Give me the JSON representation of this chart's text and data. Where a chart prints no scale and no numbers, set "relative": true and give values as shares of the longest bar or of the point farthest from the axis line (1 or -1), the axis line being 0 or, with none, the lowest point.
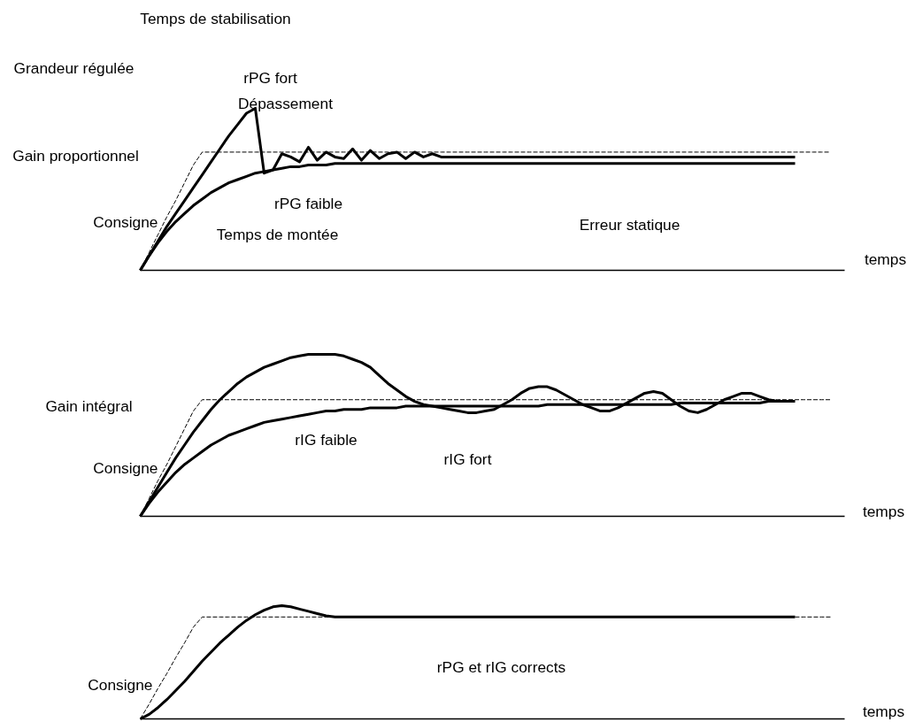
{
  "chart_data": [
    {
      "type": "line",
      "relative": true,
      "title": "Gain proportionnel",
      "ylabel": "Grandeur régulée",
      "xlabel": "temps",
      "categories": [
        null,
        null,
        null,
        null,
        null,
        null,
        null,
        null,
        null,
        null,
        null,
        null,
        null,
        null,
        null,
        null,
        null,
        null,
        null,
        null,
        null,
        null,
        null,
        null,
        null,
        null,
        null,
        null,
        null,
        null,
        null,
        null,
        null,
        null,
        null,
        null,
        null,
        null,
        null,
        null,
        null,
        null,
        null,
        null,
        null,
        null,
        null,
        null,
        null,
        null,
        null,
        null,
        null,
        null,
        null,
        null,
        null,
        null,
        null,
        null,
        null,
        null,
        null,
        null,
        null,
        null,
        null,
        null,
        null,
        null,
        null,
        null,
        null,
        null,
        null,
        null,
        null,
        null,
        null
      ],
      "series": [
        {
          "name": "rPG fort",
          "color": "#000000",
          "line_style": "solid",
          "values": [
            0,
            0.09,
            0.18,
            0.27,
            0.35,
            0.43,
            0.51,
            0.59,
            0.67,
            0.75,
            0.83,
            0.9,
            0.97,
            1,
            0.6,
            0.62,
            0.72,
            0.7,
            0.67,
            0.76,
            0.68,
            0.73,
            0.7,
            0.69,
            0.75,
            0.68,
            0.74,
            0.69,
            0.72,
            0.73,
            0.69,
            0.73,
            0.7,
            0.72,
            0.7,
            0.7,
            0.7,
            0.7,
            0.7,
            0.7,
            0.7,
            0.7,
            0.7,
            0.7,
            0.7,
            0.7,
            0.7,
            0.7,
            0.7,
            0.7,
            0.7,
            0.7,
            0.7,
            0.7,
            0.7,
            0.7,
            0.7,
            0.7,
            0.7,
            0.7,
            0.7,
            0.7,
            0.7,
            0.7,
            0.7,
            0.7,
            0.7,
            0.7,
            0.7,
            0.7,
            0.7,
            0.7,
            0.7,
            0.7,
            0.7,
            null,
            null,
            null,
            null
          ]
        },
        {
          "name": "rPG faible",
          "color": "#000000",
          "line_style": "solid",
          "values": [
            0,
            0.09,
            0.17,
            0.24,
            0.3,
            0.35,
            0.4,
            0.44,
            0.48,
            0.51,
            0.54,
            0.56,
            0.58,
            0.6,
            0.61,
            0.62,
            0.63,
            0.64,
            0.64,
            0.65,
            0.65,
            0.65,
            0.66,
            0.66,
            0.66,
            0.66,
            0.66,
            0.66,
            0.66,
            0.66,
            0.66,
            0.66,
            0.66,
            0.66,
            0.66,
            0.66,
            0.66,
            0.66,
            0.66,
            0.66,
            0.66,
            0.66,
            0.66,
            0.66,
            0.66,
            0.66,
            0.66,
            0.66,
            0.66,
            0.66,
            0.66,
            0.66,
            0.66,
            0.66,
            0.66,
            0.66,
            0.66,
            0.66,
            0.66,
            0.66,
            0.66,
            0.66,
            0.66,
            0.66,
            0.66,
            0.66,
            0.66,
            0.66,
            0.66,
            0.66,
            0.66,
            0.66,
            0.66,
            0.66,
            0.66,
            null,
            null,
            null,
            null
          ]
        },
        {
          "name": "Consigne",
          "color": "#000000",
          "line_style": "dashed",
          "values": [
            0,
            0.11,
            0.22,
            0.33,
            0.43,
            0.54,
            0.65,
            0.73,
            0.73,
            0.73,
            0.73,
            0.73,
            0.73,
            0.73,
            0.73,
            0.73,
            0.73,
            0.73,
            0.73,
            0.73,
            0.73,
            0.73,
            0.73,
            0.73,
            0.73,
            0.73,
            0.73,
            0.73,
            0.73,
            0.73,
            0.73,
            0.73,
            0.73,
            0.73,
            0.73,
            0.73,
            0.73,
            0.73,
            0.73,
            0.73,
            0.73,
            0.73,
            0.73,
            0.73,
            0.73,
            0.73,
            0.73,
            0.73,
            0.73,
            0.73,
            0.73,
            0.73,
            0.73,
            0.73,
            0.73,
            0.73,
            0.73,
            0.73,
            0.73,
            0.73,
            0.73,
            0.73,
            0.73,
            0.73,
            0.73,
            0.73,
            0.73,
            0.73,
            0.73,
            0.73,
            0.73,
            0.73,
            0.73,
            0.73,
            0.73,
            0.73,
            0.73,
            0.73,
            0.73
          ]
        }
      ],
      "annotations": [
        "Temps de stabilisation",
        "Dépassement",
        "Temps de montée",
        "Erreur statique"
      ]
    },
    {
      "type": "line",
      "relative": true,
      "title": "Gain intégral",
      "xlabel": "temps",
      "categories": [
        null,
        null,
        null,
        null,
        null,
        null,
        null,
        null,
        null,
        null,
        null,
        null,
        null,
        null,
        null,
        null,
        null,
        null,
        null,
        null,
        null,
        null,
        null,
        null,
        null,
        null,
        null,
        null,
        null,
        null,
        null,
        null,
        null,
        null,
        null,
        null,
        null,
        null,
        null,
        null,
        null,
        null,
        null,
        null,
        null,
        null,
        null,
        null,
        null,
        null,
        null,
        null,
        null,
        null,
        null,
        null,
        null,
        null,
        null,
        null,
        null,
        null,
        null,
        null,
        null,
        null,
        null,
        null,
        null,
        null,
        null,
        null,
        null,
        null,
        null,
        null,
        null,
        null,
        null
      ],
      "series": [
        {
          "name": "rIG fort",
          "color": "#000000",
          "line_style": "solid",
          "values": [
            0,
            0.09,
            0.18,
            0.27,
            0.36,
            0.44,
            0.52,
            0.59,
            0.66,
            0.72,
            0.77,
            0.82,
            0.86,
            0.89,
            0.92,
            0.94,
            0.96,
            0.98,
            0.99,
            1,
            1,
            1,
            1,
            0.99,
            0.97,
            0.95,
            0.92,
            0.87,
            0.82,
            0.78,
            0.74,
            0.71,
            0.69,
            0.68,
            0.67,
            0.66,
            0.65,
            0.64,
            0.64,
            0.65,
            0.66,
            0.69,
            0.72,
            0.76,
            0.79,
            0.8,
            0.8,
            0.78,
            0.75,
            0.72,
            0.69,
            0.67,
            0.65,
            0.65,
            0.67,
            0.7,
            0.73,
            0.76,
            0.77,
            0.76,
            0.72,
            0.68,
            0.65,
            0.64,
            0.66,
            0.69,
            0.72,
            0.74,
            0.76,
            0.76,
            0.74,
            0.72,
            0.71,
            null,
            null,
            null,
            null,
            null,
            null
          ]
        },
        {
          "name": "rIG faible",
          "color": "#000000",
          "line_style": "solid",
          "values": [
            0,
            0.08,
            0.15,
            0.21,
            0.27,
            0.32,
            0.36,
            0.4,
            0.44,
            0.47,
            0.5,
            0.52,
            0.54,
            0.56,
            0.58,
            0.59,
            0.6,
            0.61,
            0.62,
            0.63,
            0.64,
            0.65,
            0.65,
            0.66,
            0.66,
            0.66,
            0.67,
            0.67,
            0.67,
            0.67,
            0.68,
            0.68,
            0.68,
            0.68,
            0.68,
            0.68,
            0.68,
            0.68,
            0.68,
            0.68,
            0.68,
            0.68,
            0.68,
            0.68,
            0.68,
            0.68,
            0.69,
            0.69,
            0.69,
            0.69,
            0.69,
            0.69,
            0.69,
            0.69,
            0.69,
            0.69,
            0.69,
            0.69,
            0.69,
            0.69,
            0.69,
            0.7,
            0.7,
            0.7,
            0.7,
            0.7,
            0.7,
            0.7,
            0.7,
            0.7,
            0.7,
            0.71,
            0.71,
            0.71,
            0.71,
            null,
            null,
            null,
            null
          ]
        },
        {
          "name": "Consigne",
          "color": "#000000",
          "line_style": "dashed",
          "values": [
            0,
            0.11,
            0.22,
            0.32,
            0.43,
            0.54,
            0.65,
            0.72,
            0.72,
            0.72,
            0.72,
            0.72,
            0.72,
            0.72,
            0.72,
            0.72,
            0.72,
            0.72,
            0.72,
            0.72,
            0.72,
            0.72,
            0.72,
            0.72,
            0.72,
            0.72,
            0.72,
            0.72,
            0.72,
            0.72,
            0.72,
            0.72,
            0.72,
            0.72,
            0.72,
            0.72,
            0.72,
            0.72,
            0.72,
            0.72,
            0.72,
            0.72,
            0.72,
            0.72,
            0.72,
            0.72,
            0.72,
            0.72,
            0.72,
            0.72,
            0.72,
            0.72,
            0.72,
            0.72,
            0.72,
            0.72,
            0.72,
            0.72,
            0.72,
            0.72,
            0.72,
            0.72,
            0.72,
            0.72,
            0.72,
            0.72,
            0.72,
            0.72,
            0.72,
            0.72,
            0.72,
            0.72,
            0.72,
            0.72,
            0.72,
            0.72,
            0.72,
            0.72,
            0.72
          ]
        }
      ]
    },
    {
      "type": "line",
      "relative": true,
      "xlabel": "temps",
      "categories": [
        null,
        null,
        null,
        null,
        null,
        null,
        null,
        null,
        null,
        null,
        null,
        null,
        null,
        null,
        null,
        null,
        null,
        null,
        null,
        null,
        null,
        null,
        null,
        null,
        null,
        null,
        null,
        null,
        null,
        null,
        null,
        null,
        null,
        null,
        null,
        null,
        null,
        null,
        null,
        null,
        null,
        null,
        null,
        null,
        null,
        null,
        null,
        null,
        null,
        null,
        null,
        null,
        null,
        null,
        null,
        null,
        null,
        null,
        null,
        null,
        null,
        null,
        null,
        null,
        null,
        null,
        null,
        null,
        null,
        null,
        null,
        null,
        null,
        null,
        null,
        null,
        null,
        null,
        null
      ],
      "series": [
        {
          "name": "rPG et rIG corrects",
          "color": "#000000",
          "line_style": "solid",
          "values": [
            0,
            0.04,
            0.1,
            0.17,
            0.25,
            0.33,
            0.42,
            0.51,
            0.59,
            0.67,
            0.74,
            0.81,
            0.87,
            0.92,
            0.96,
            0.99,
            1,
            0.99,
            0.97,
            0.95,
            0.93,
            0.91,
            0.9,
            0.9,
            0.9,
            0.9,
            0.9,
            0.9,
            0.9,
            0.9,
            0.9,
            0.9,
            0.9,
            0.9,
            0.9,
            0.9,
            0.9,
            0.9,
            0.9,
            0.9,
            0.9,
            0.9,
            0.9,
            0.9,
            0.9,
            0.9,
            0.9,
            0.9,
            0.9,
            0.9,
            0.9,
            0.9,
            0.9,
            0.9,
            0.9,
            0.9,
            0.9,
            0.9,
            0.9,
            0.9,
            0.9,
            0.9,
            0.9,
            0.9,
            0.9,
            0.9,
            0.9,
            0.9,
            0.9,
            0.9,
            0.9,
            0.9,
            0.9,
            0.9,
            0.9,
            null,
            null,
            null,
            null
          ]
        },
        {
          "name": "Consigne",
          "color": "#000000",
          "line_style": "dashed",
          "values": [
            0,
            0.13,
            0.27,
            0.4,
            0.54,
            0.67,
            0.81,
            0.9,
            0.9,
            0.9,
            0.9,
            0.9,
            0.9,
            0.9,
            0.9,
            0.9,
            0.9,
            0.9,
            0.9,
            0.9,
            0.9,
            0.9,
            0.9,
            0.9,
            0.9,
            0.9,
            0.9,
            0.9,
            0.9,
            0.9,
            0.9,
            0.9,
            0.9,
            0.9,
            0.9,
            0.9,
            0.9,
            0.9,
            0.9,
            0.9,
            0.9,
            0.9,
            0.9,
            0.9,
            0.9,
            0.9,
            0.9,
            0.9,
            0.9,
            0.9,
            0.9,
            0.9,
            0.9,
            0.9,
            0.9,
            0.9,
            0.9,
            0.9,
            0.9,
            0.9,
            0.9,
            0.9,
            0.9,
            0.9,
            0.9,
            0.9,
            0.9,
            0.9,
            0.9,
            0.9,
            0.9,
            0.9,
            0.9,
            0.9,
            0.9,
            0.9,
            0.9,
            0.9,
            0.9
          ]
        }
      ]
    }
  ]
}
